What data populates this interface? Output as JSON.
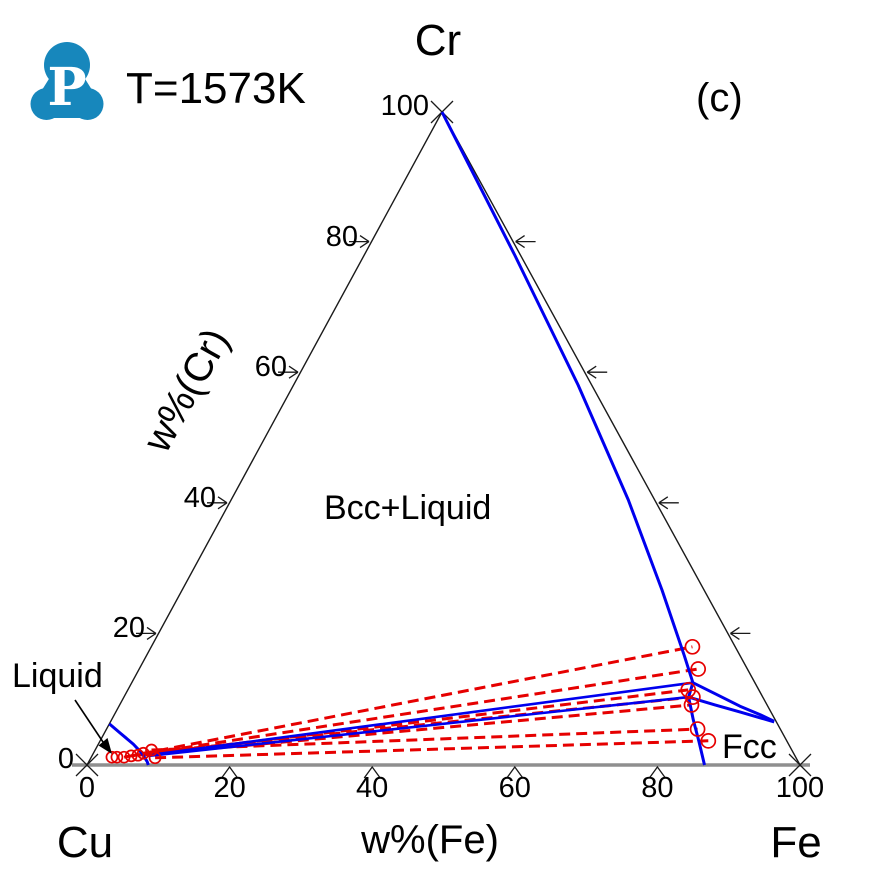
{
  "header": {
    "logo_letter": "P",
    "logo_color": "#1787BC",
    "temperature_label": "T=1573K",
    "panel_label": "(c)"
  },
  "labels": {
    "top_corner": "Cr",
    "bottom_left_corner": "Cu",
    "bottom_right_corner": "Fe",
    "left_axis_title": "w%(Cr)",
    "bottom_axis_title": "w%(Fe)"
  },
  "regions": {
    "bcc_liquid": "Bcc+Liquid",
    "liquid": "Liquid",
    "fcc": "Fcc"
  },
  "chart_data": {
    "type": "ternary-phase-diagram",
    "title": "Cu-Fe-Cr isothermal section",
    "temperature_K": 1573,
    "components": {
      "bottom_left": "Cu",
      "bottom_right": "Fe",
      "top": "Cr"
    },
    "axes": {
      "bottom_label": "w%(Fe)",
      "left_label": "w%(Cr)",
      "range": [
        0,
        100
      ],
      "tick_values": [
        0,
        20,
        40,
        60,
        80,
        100
      ],
      "right_edge_tick_values": [
        20,
        40,
        60,
        80
      ]
    },
    "colors": {
      "phase_boundary": "#0000EE",
      "tie_line": "#E60000",
      "bottom_axis": "#8F8F8F",
      "edge": "#1A1A1A"
    },
    "phase_boundaries": [
      {
        "name": "bcc-solvus-and-fcc-boundary",
        "points": [
          [
            0,
            100
          ],
          [
            21.1,
            78.1
          ],
          [
            39.9,
            58.2
          ],
          [
            55.7,
            40.6
          ],
          [
            67.3,
            26.8
          ],
          [
            75.4,
            16.8
          ],
          [
            78.7,
            12.6
          ],
          [
            79.2,
            10.4
          ],
          [
            81.6,
            6.9
          ],
          [
            84.1,
            3.5
          ],
          [
            86.6,
            0
          ]
        ]
      },
      {
        "name": "bcc-fcc-wedge-upper",
        "points": [
          [
            78.7,
            12.6
          ],
          [
            82.7,
            10.9
          ],
          [
            87.1,
            9.0
          ],
          [
            90.6,
            7.7
          ],
          [
            93.0,
            6.7
          ]
        ]
      },
      {
        "name": "bcc-fcc-wedge-lower",
        "points": [
          [
            79.2,
            10.4
          ],
          [
            83.5,
            9.2
          ],
          [
            87.6,
            8.1
          ],
          [
            93.1,
            6.6
          ]
        ]
      },
      {
        "name": "liquidus-cu-corner",
        "points": [
          [
            0,
            6.3
          ],
          [
            2.2,
            4.9
          ],
          [
            4.9,
            3.2
          ],
          [
            6.8,
            1.8
          ],
          [
            8.2,
            0.5
          ],
          [
            8.6,
            0
          ]
        ]
      }
    ],
    "three_phase_tie_lines": [
      {
        "name": "liquid-bcc",
        "points": [
          [
            7.9,
            1.5
          ],
          [
            78.7,
            12.6
          ]
        ]
      },
      {
        "name": "liquid-fcc",
        "points": [
          [
            7.9,
            1.4
          ],
          [
            79.2,
            10.4
          ]
        ]
      }
    ],
    "experimental_tie_lines": [
      {
        "liquid": [
          4.6,
          1.2
        ],
        "solid": [
          75.9,
          18.1
        ]
      },
      {
        "liquid": [
          5.5,
          1.4
        ],
        "solid": [
          78.4,
          14.7
        ]
      },
      {
        "liquid": [
          6.4,
          1.5
        ],
        "solid": [
          78.6,
          11.5
        ]
      },
      {
        "liquid": [
          7.0,
          1.8
        ],
        "solid": [
          79.8,
          10.4
        ]
      },
      {
        "liquid": [
          7.4,
          1.6
        ],
        "solid": [
          80.2,
          9.2
        ]
      },
      {
        "liquid": [
          7.9,
          2.3
        ],
        "solid": [
          82.9,
          5.5
        ]
      },
      {
        "liquid": [
          9.0,
          1.1
        ],
        "solid": [
          85.3,
          3.7
        ]
      }
    ],
    "data_points": {
      "liquid_circles": [
        [
          2.9,
          1.2
        ],
        [
          3.6,
          1.2
        ],
        [
          4.6,
          1.2
        ],
        [
          5.5,
          1.4
        ],
        [
          6.4,
          1.5
        ],
        [
          7.0,
          1.8
        ],
        [
          7.9,
          2.3
        ],
        [
          9.0,
          1.1
        ]
      ],
      "solid_circles": [
        [
          75.9,
          18.1
        ],
        [
          78.4,
          14.7
        ],
        [
          78.6,
          11.5
        ],
        [
          79.8,
          10.4
        ],
        [
          80.2,
          9.2
        ],
        [
          82.9,
          5.5
        ],
        [
          85.3,
          3.7
        ]
      ]
    },
    "annotations": [
      {
        "text": "Liquid",
        "arrow_to_region": "cu-rich liquid corner"
      },
      {
        "text": "Bcc+Liquid",
        "placement": "center of two-phase field"
      },
      {
        "text": "Fcc",
        "placement": "fe-rich corner"
      }
    ]
  }
}
